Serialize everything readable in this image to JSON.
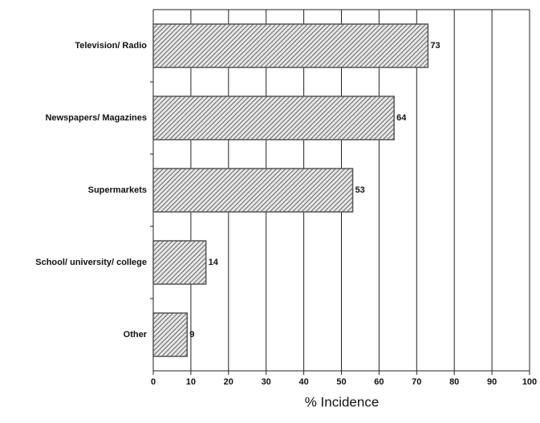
{
  "chart_data": {
    "type": "bar",
    "orientation": "horizontal",
    "categories": [
      "Television/ Radio",
      "Newspapers/ Magazines",
      "Supermarkets",
      "School/ university/ college",
      "Other"
    ],
    "values": [
      73,
      64,
      53,
      14,
      9
    ],
    "color": "#555555",
    "xlabel": "% Incidence",
    "xlim": [
      0,
      100
    ],
    "xticks": [
      0,
      10,
      20,
      30,
      40,
      50,
      60,
      70,
      80,
      90,
      100
    ],
    "grid": true
  }
}
